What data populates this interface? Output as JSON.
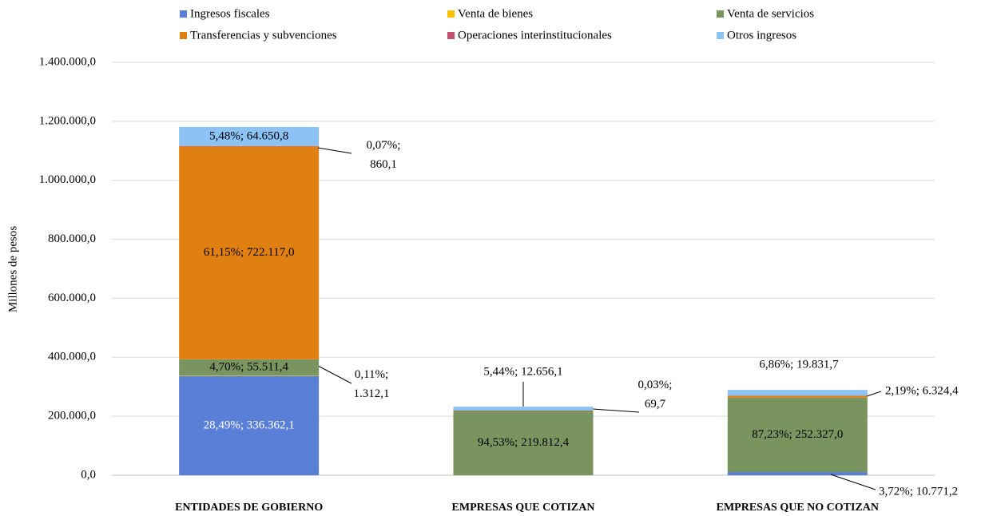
{
  "chart_data": {
    "type": "stacked_bar",
    "y_label": "Millones  de pesos",
    "categories": [
      "ENTIDADES DE GOBIERNO",
      "EMPRESAS QUE COTIZAN",
      "EMPRESAS QUE NO COTIZAN"
    ],
    "ylim": [
      0,
      1400000
    ],
    "yticks": [
      {
        "value": 0,
        "label": "0,0"
      },
      {
        "value": 200000,
        "label": "200.000,0"
      },
      {
        "value": 400000,
        "label": "400.000,0"
      },
      {
        "value": 600000,
        "label": "600.000,0"
      },
      {
        "value": 800000,
        "label": "800.000,0"
      },
      {
        "value": 1000000,
        "label": "1.000.000,0"
      },
      {
        "value": 1200000,
        "label": "1.200.000,0"
      },
      {
        "value": 1400000,
        "label": "1.400.000,0"
      }
    ],
    "grid": true,
    "legend": "top",
    "series": [
      {
        "name": "Ingresos fiscales",
        "color": "#5a7fd7",
        "values": [
          336362.1,
          null,
          10771.2
        ],
        "value_labels": [
          "28,49%; 336.362,1",
          null,
          "3,72%; 10.771,2"
        ]
      },
      {
        "name": "Venta de bienes",
        "color": "#ffc000",
        "values": [
          1312.1,
          null,
          null
        ],
        "value_labels": [
          "0,11%; 1.312,1",
          null,
          null
        ]
      },
      {
        "name": "Venta de servicios",
        "color": "#7a9460",
        "values": [
          55511.4,
          219812.4,
          252327.0
        ],
        "value_labels": [
          "4,70%; 55.511,4",
          "94,53%; 219.812,4",
          "87,23%; 252.327,0"
        ]
      },
      {
        "name": "Transferencias y subvenciones",
        "color": "#e07f12",
        "values": [
          722117.0,
          null,
          6324.4
        ],
        "value_labels": [
          "61,15%; 722.117,0",
          null,
          "2,19%; 6.324,4"
        ]
      },
      {
        "name": "Operaciones interinstitucionales",
        "color": "#c0506d",
        "values": [
          860.1,
          69.7,
          null
        ],
        "value_labels": [
          "0,07%; 860,1",
          "0,03%; 69,7",
          null
        ]
      },
      {
        "name": "Otros ingresos",
        "color": "#8cc2f4",
        "values": [
          64650.8,
          12656.1,
          19831.7
        ],
        "value_labels": [
          "5,48%; 64.650,8",
          "5,44%; 12.656,1",
          "6,86%; 19.831,7"
        ]
      }
    ]
  }
}
